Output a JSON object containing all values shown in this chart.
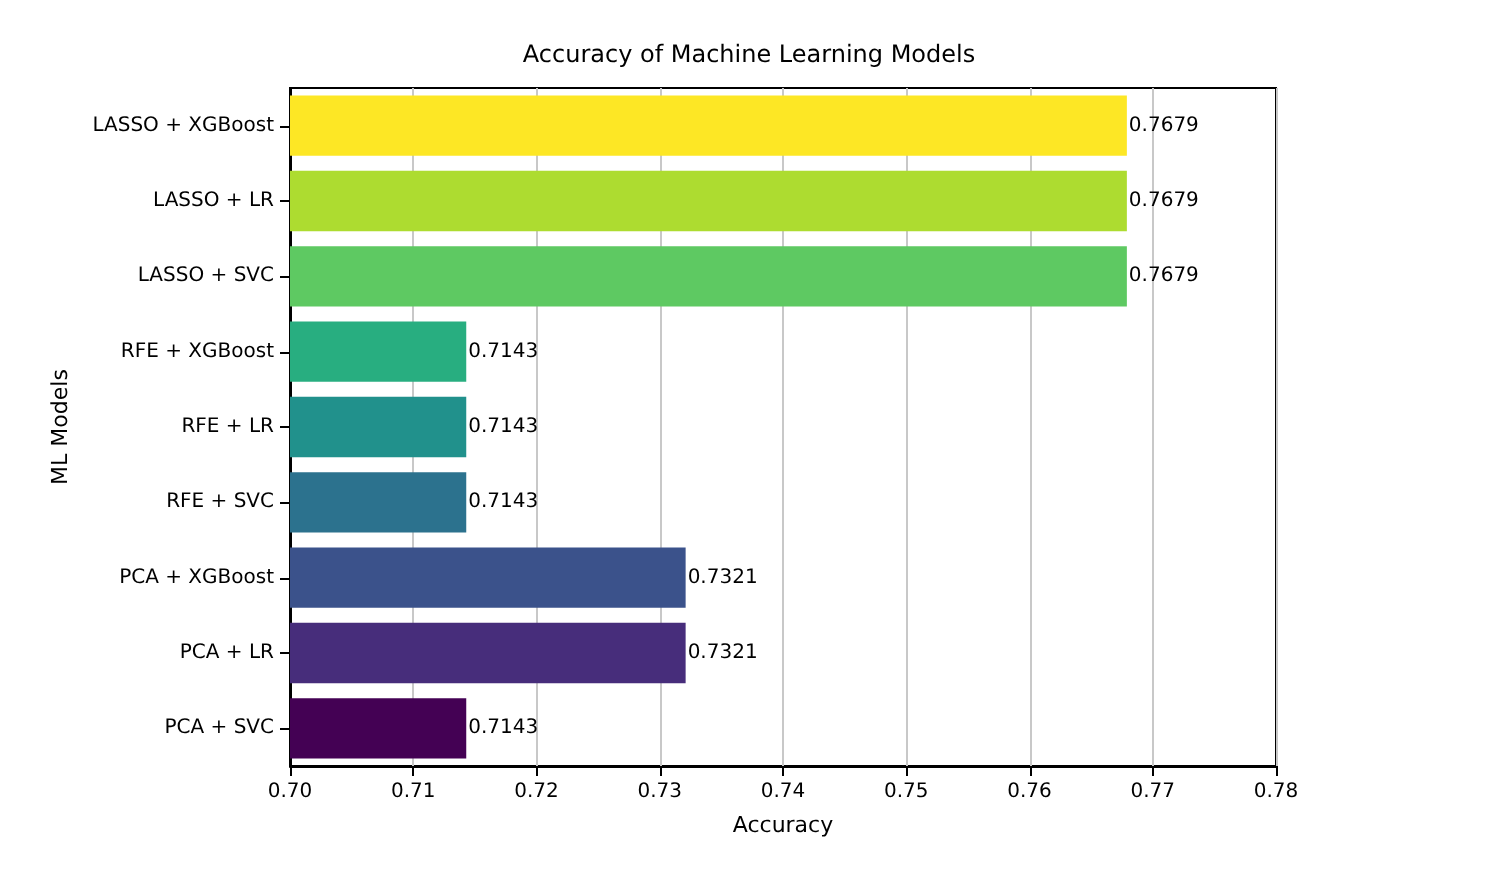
{
  "chart_data": {
    "type": "bar",
    "orientation": "horizontal",
    "title": "Accuracy of Machine Learning Models",
    "xlabel": "Accuracy",
    "ylabel": "ML Models",
    "categories": [
      "LASSO + XGBoost",
      "LASSO + LR",
      "LASSO + SVC",
      "RFE + XGBoost",
      "RFE + LR",
      "RFE + SVC",
      "PCA + XGBoost",
      "PCA + LR",
      "PCA + SVC"
    ],
    "values": [
      0.7679,
      0.7679,
      0.7679,
      0.7143,
      0.7143,
      0.7143,
      0.7321,
      0.7321,
      0.7143
    ],
    "colors": [
      "#fde725",
      "#addc30",
      "#5ec962",
      "#28ae80",
      "#21918c",
      "#2c728e",
      "#3b528b",
      "#472d7b",
      "#440154"
    ],
    "xlim": [
      0.7,
      0.78
    ],
    "xticks": [
      {
        "value": 0.7,
        "label": "0.70"
      },
      0.71,
      0.72,
      0.73,
      0.74,
      0.75,
      0.76,
      0.77,
      0.78
    ],
    "grid": "x",
    "data_labels": true
  }
}
